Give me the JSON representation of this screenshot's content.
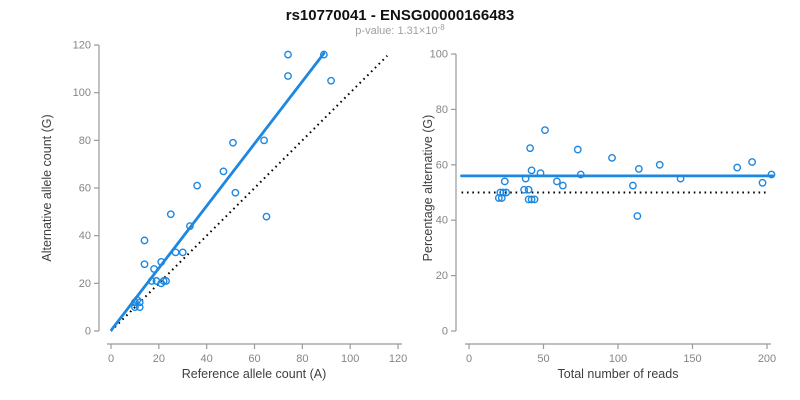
{
  "title": "rs10770041 - ENSG00000166483",
  "subtitle": {
    "prefix": "p-value: 1.31×10",
    "exponent": "-8"
  },
  "colors": {
    "accent_blue": "#1e87e0",
    "line_black": "#000000",
    "axis_line": "#9a9a9a",
    "tick_label": "#858585",
    "axis_title": "#3f3f3f",
    "title": "#111111",
    "subtitle": "#a0a0a0",
    "background": "#ffffff"
  },
  "chart_data": [
    {
      "type": "scatter",
      "name": "allele-counts-scatter",
      "xlabel": "Reference allele count (A)",
      "ylabel": "Alternative allele count (G)",
      "xlim": [
        0,
        120
      ],
      "ylim": [
        0,
        120
      ],
      "xticks": [
        0,
        20,
        40,
        60,
        80,
        100,
        120
      ],
      "yticks": [
        0,
        20,
        40,
        60,
        80,
        100,
        120
      ],
      "grid": false,
      "points": [
        [
          74,
          116
        ],
        [
          89,
          116
        ],
        [
          74,
          107
        ],
        [
          92,
          105
        ],
        [
          64,
          80
        ],
        [
          51,
          79
        ],
        [
          47,
          67
        ],
        [
          36,
          61
        ],
        [
          52,
          58
        ],
        [
          65,
          48
        ],
        [
          25,
          49
        ],
        [
          33,
          44
        ],
        [
          14,
          38
        ],
        [
          27,
          33
        ],
        [
          30,
          33
        ],
        [
          21,
          29
        ],
        [
          14,
          28
        ],
        [
          18,
          26
        ],
        [
          17,
          21
        ],
        [
          19,
          21
        ],
        [
          21,
          20
        ],
        [
          22,
          21
        ],
        [
          23,
          21
        ],
        [
          11,
          13
        ],
        [
          10,
          12
        ],
        [
          12,
          12
        ],
        [
          10,
          10
        ],
        [
          12,
          10
        ]
      ],
      "lines": [
        {
          "name": "identity-line",
          "x1": 0,
          "y1": 0,
          "x2": 115.5,
          "y2": 115.5,
          "color": "black",
          "style": "dotted",
          "width": 2
        },
        {
          "name": "regression-line",
          "x1": 0.2,
          "y1": 0.5,
          "x2": 89,
          "y2": 116.5,
          "color": "blue",
          "style": "solid",
          "width": 2.8
        }
      ]
    },
    {
      "type": "scatter",
      "name": "percentage-vs-reads-scatter",
      "xlabel": "Total number of reads",
      "ylabel": "Percentage alternative (G)",
      "xlim": [
        0,
        205
      ],
      "ylim": [
        0,
        100
      ],
      "xticks": [
        0,
        50,
        100,
        150,
        200
      ],
      "yticks": [
        0,
        20,
        40,
        60,
        80,
        100
      ],
      "grid": false,
      "points": [
        [
          51,
          72.5
        ],
        [
          41,
          66
        ],
        [
          73,
          65.5
        ],
        [
          96,
          62.5
        ],
        [
          42,
          58
        ],
        [
          48,
          57
        ],
        [
          75,
          56.5
        ],
        [
          114,
          58.5
        ],
        [
          128,
          60
        ],
        [
          180,
          59
        ],
        [
          190,
          61
        ],
        [
          203,
          56.5
        ],
        [
          38,
          55
        ],
        [
          24,
          54
        ],
        [
          59,
          54
        ],
        [
          63,
          52.5
        ],
        [
          110,
          52.5
        ],
        [
          142,
          55
        ],
        [
          197,
          53.5
        ],
        [
          37,
          51
        ],
        [
          40,
          51
        ],
        [
          21,
          50
        ],
        [
          23,
          50
        ],
        [
          25,
          50
        ],
        [
          20,
          48
        ],
        [
          22,
          48
        ],
        [
          40,
          47.5
        ],
        [
          42,
          47.5
        ],
        [
          44,
          47.5
        ],
        [
          113,
          41.5
        ]
      ],
      "lines": [
        {
          "name": "fifty-percent-line",
          "x1": -5,
          "y1": 50,
          "x2": 200.5,
          "y2": 50,
          "color": "black",
          "style": "dotted",
          "width": 2
        },
        {
          "name": "mean-percentage-line",
          "x1": -5,
          "y1": 56,
          "x2": 204,
          "y2": 56,
          "color": "blue",
          "style": "solid",
          "width": 2.8
        }
      ]
    }
  ]
}
